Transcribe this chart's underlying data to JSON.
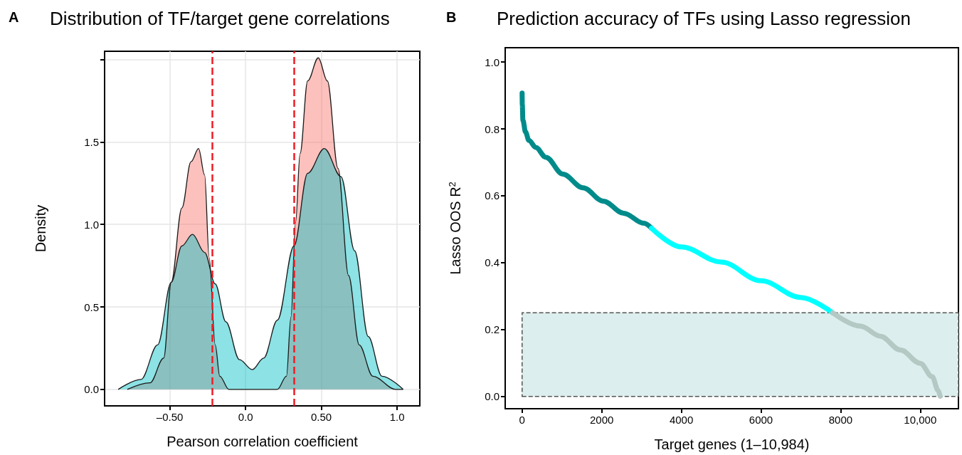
{
  "chart_data": [
    {
      "type": "area",
      "title": "Distribution of TF/target gene correlations",
      "xlabel": "Pearson correlation coefficient",
      "ylabel": "Density",
      "annotations": [
        "A"
      ],
      "xlim": [
        -0.93,
        1.15
      ],
      "ylim": [
        -0.1,
        2.05
      ],
      "xticks": [
        {
          "value": -0.5,
          "label": "–0.50"
        },
        {
          "value": 0,
          "label": "0.0"
        },
        {
          "value": 0.5,
          "label": "0.50"
        },
        {
          "value": 1,
          "label": "1.0"
        }
      ],
      "yticks": [
        {
          "value": 0,
          "label": "0.0"
        },
        {
          "value": 0.5,
          "label": "0.5"
        },
        {
          "value": 1,
          "label": "1.0"
        },
        {
          "value": 1.5,
          "label": "1.5"
        },
        {
          "value": 2,
          "label": null
        }
      ],
      "grid": true,
      "marker": "none",
      "line_style": "solid",
      "series": [
        {
          "color": "#f8766d",
          "x": [
            -0.78,
            -0.63,
            -0.54,
            -0.49,
            -0.42,
            -0.36,
            -0.31,
            -0.27,
            -0.24,
            -0.2,
            -0.17,
            -0.11,
            0.0,
            0.1,
            0.21,
            0.27,
            0.3,
            0.33,
            0.36,
            0.41,
            0.48,
            0.54,
            0.61,
            0.68,
            0.75,
            0.84,
            0.99,
            1.04
          ],
          "values": [
            0,
            0.04,
            0.19,
            0.65,
            1.1,
            1.38,
            1.46,
            1.3,
            0.8,
            0.27,
            0.08,
            0,
            0,
            0,
            0,
            0.08,
            0.44,
            1.01,
            1.43,
            1.87,
            2.01,
            1.87,
            1.34,
            0.69,
            0.27,
            0.08,
            0,
            0
          ]
        },
        {
          "color": "#00bfc4",
          "x": [
            -0.84,
            -0.69,
            -0.58,
            -0.49,
            -0.42,
            -0.35,
            -0.27,
            -0.2,
            -0.13,
            -0.04,
            0.045,
            0.12,
            0.21,
            0.32,
            0.41,
            0.52,
            0.63,
            0.72,
            0.81,
            0.9,
            1.04
          ],
          "values": [
            0,
            0.06,
            0.27,
            0.65,
            0.87,
            0.94,
            0.83,
            0.64,
            0.41,
            0.18,
            0.12,
            0.19,
            0.42,
            0.87,
            1.31,
            1.46,
            1.29,
            0.84,
            0.32,
            0.08,
            0
          ]
        }
      ],
      "ref_lines": [
        {
          "axis": "x",
          "value": -0.22,
          "color": "#ee1c25",
          "line_style": "dashed"
        },
        {
          "axis": "x",
          "value": 0.32,
          "color": "#ee1c25",
          "line_style": "dashed"
        }
      ]
    },
    {
      "type": "line",
      "title": "Prediction accuracy of TFs using Lasso regression",
      "xlabel": "Target genes (1–10,984)",
      "ylabel": "Lasso OOS R$^{2}$",
      "annotations": [
        "B"
      ],
      "xlim": [
        -425,
        10960
      ],
      "ylim": [
        -0.037,
        1.043
      ],
      "xticks": [
        0,
        2000,
        4000,
        6000,
        8000,
        {
          "value": 10000,
          "label": "10,000"
        }
      ],
      "yticks": [
        {
          "value": 0,
          "label": "0.0"
        },
        {
          "value": 0.2,
          "label": "0.2"
        },
        {
          "value": 0.4,
          "label": "0.4"
        },
        {
          "value": 0.6,
          "label": "0.6"
        },
        {
          "value": 0.8,
          "label": "0.8"
        },
        {
          "value": 1,
          "label": "1.0"
        }
      ],
      "grid": false,
      "marker": "none",
      "line_style": "solid",
      "series": [
        {
          "color": "#008b8b",
          "x": [
            0,
            5,
            20,
            85,
            170,
            340,
            600,
            1020,
            1530,
            2040,
            2550,
            3060,
            3250
          ],
          "values": [
            0.907,
            0.872,
            0.826,
            0.791,
            0.766,
            0.745,
            0.715,
            0.665,
            0.624,
            0.584,
            0.548,
            0.518,
            0.503
          ]
        },
        {
          "color": "#00ffff",
          "x": [
            3250,
            4000,
            5000,
            6000,
            7000,
            7800
          ],
          "values": [
            0.503,
            0.447,
            0.402,
            0.346,
            0.296,
            0.25
          ]
        },
        {
          "color": "#b4c8c4",
          "x": [
            7800,
            8500,
            9000,
            9500,
            10000,
            10300,
            10450,
            10500
          ],
          "values": [
            0.25,
            0.21,
            0.18,
            0.139,
            0.099,
            0.059,
            0.018,
            0
          ]
        }
      ],
      "bands": [
        {
          "axis": "y",
          "from": 0,
          "to": 0.25,
          "color": "#dceeed"
        }
      ]
    }
  ]
}
